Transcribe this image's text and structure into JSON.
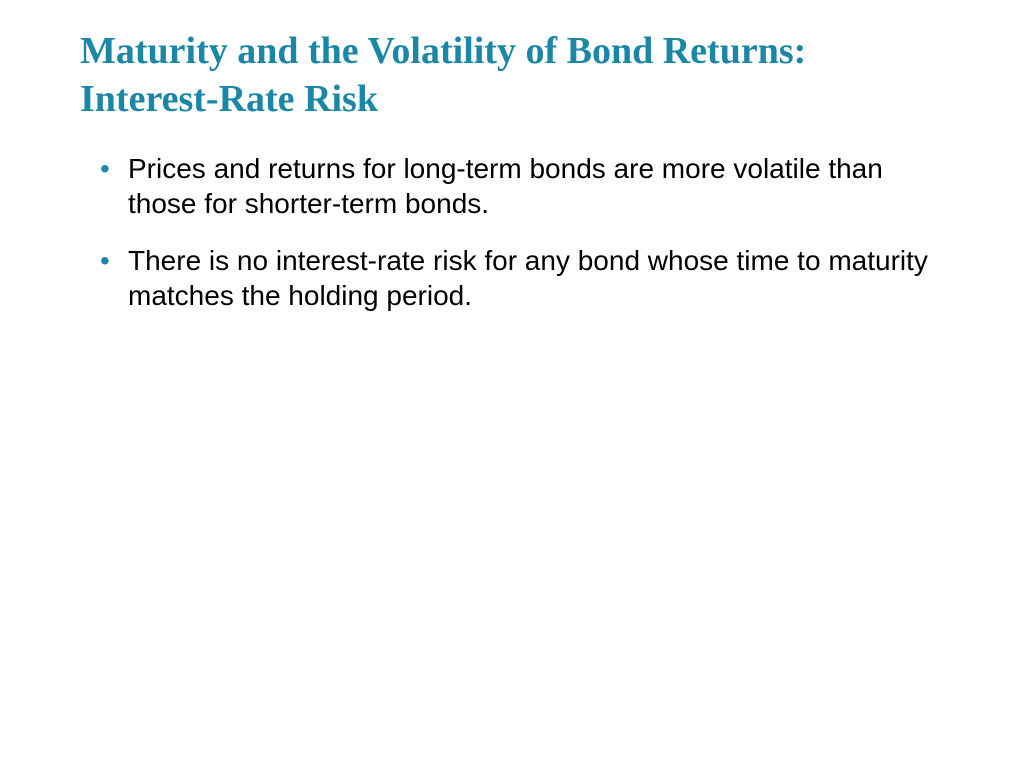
{
  "slide": {
    "title": "Maturity and the Volatility of Bond Returns: Interest-Rate Risk",
    "bullets": [
      "Prices and returns for long-term bonds are more volatile than those for shorter-term bonds.",
      "There is no interest-rate risk for any bond whose time to maturity matches the holding period."
    ],
    "title_color": "#1b87a6",
    "bullet_color": "#1b87a6",
    "text_color": "#000000",
    "background_color": "#ffffff",
    "title_fontsize": 38,
    "body_fontsize": 28
  }
}
